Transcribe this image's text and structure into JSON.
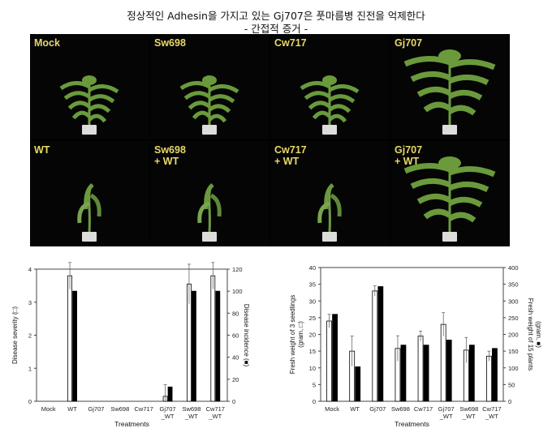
{
  "header": {
    "title": "정상적인 Adhesin을 가지고 있는 Gj707은 풋마름병 진전을 억제한다",
    "subtitle": "-   간접적 증거 -"
  },
  "photos": [
    {
      "label": "Mock",
      "state": "healthy"
    },
    {
      "label": "Sw698",
      "state": "healthy"
    },
    {
      "label": "Cw717",
      "state": "healthy"
    },
    {
      "label": "Gj707",
      "state": "healthy-large"
    },
    {
      "label": "WT",
      "state": "wilted"
    },
    {
      "label": "Sw698\n+ WT",
      "state": "wilted"
    },
    {
      "label": "Cw717\n+ WT",
      "state": "wilted"
    },
    {
      "label": "Gj707\n+ WT",
      "state": "healthy-large"
    }
  ],
  "colors": {
    "bar_open": "#ffffff",
    "bar_filled": "#000000",
    "photo_bg": "#050505",
    "label": "#e8d868",
    "leaf": "#6a9a3c"
  },
  "chart_data": [
    {
      "type": "bar",
      "categories": [
        "Mock",
        "WT",
        "Gj707",
        "Sw698",
        "Cw717",
        "Gj707\n_WT",
        "Sw698\n_WT",
        "Cw717\n_WT"
      ],
      "xlabel": "Treatments",
      "ylabel": "Disease severity (□)",
      "ylabel_right": "Disease incidence (■)",
      "ylim": [
        0,
        4
      ],
      "yticks": [
        0,
        1,
        2,
        3,
        4
      ],
      "ylim_right": [
        0,
        120
      ],
      "yticks_right": [
        0,
        20,
        40,
        60,
        80,
        100,
        120
      ],
      "grid": false,
      "series": [
        {
          "values": [
            0,
            3.8,
            0,
            0,
            0,
            0.15,
            3.55,
            3.8
          ],
          "errors": [
            0,
            0.4,
            0,
            0,
            0,
            0.35,
            0.6,
            0.4
          ],
          "axis": "left",
          "fill": "open"
        },
        {
          "values": [
            0,
            100,
            0,
            0,
            0,
            13,
            100,
            100
          ],
          "errors": [
            0,
            0,
            0,
            0,
            0,
            0,
            0,
            0
          ],
          "axis": "right",
          "fill": "filled"
        }
      ]
    },
    {
      "type": "bar",
      "categories": [
        "Mock",
        "WT",
        "Gj707",
        "Sw698",
        "Cw717",
        "Gj707\n_WT",
        "Sw698\n_WT",
        "Cw717\n_WT"
      ],
      "xlabel": "Treatments",
      "ylabel": "Fresh weight of 3 seedlings\n(gram, □)",
      "ylabel_right": "Fresh weight of 15 plants\n(gram, ■)",
      "ylim": [
        0,
        40
      ],
      "yticks": [
        0,
        5,
        10,
        15,
        20,
        25,
        30,
        35,
        40
      ],
      "ylim_right": [
        0,
        400
      ],
      "yticks_right": [
        0,
        50,
        100,
        150,
        200,
        250,
        300,
        350,
        400
      ],
      "grid": false,
      "series": [
        {
          "values": [
            24,
            15,
            33,
            15.8,
            19.5,
            23,
            15.3,
            13.5
          ],
          "errors": [
            2,
            4.5,
            1.5,
            3.8,
            1.5,
            3.5,
            3.8,
            1.5
          ],
          "axis": "left",
          "fill": "open"
        },
        {
          "values": [
            260,
            103,
            343,
            168,
            168,
            183,
            168,
            158
          ],
          "errors": [
            0,
            0,
            0,
            0,
            0,
            0,
            0,
            0
          ],
          "axis": "right",
          "fill": "filled"
        }
      ]
    }
  ]
}
